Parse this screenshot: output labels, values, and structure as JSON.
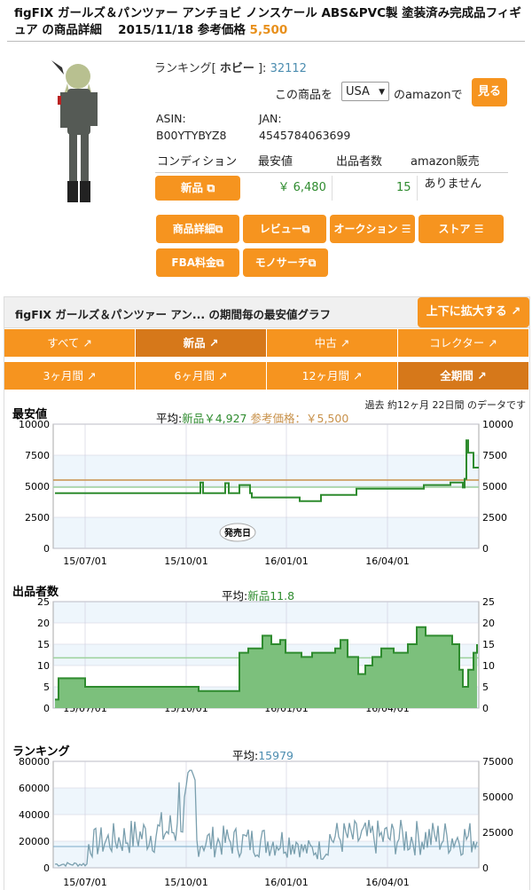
{
  "title": {
    "text": "figFIX ガールズ＆パンツァー アンチョビ ノンスケール ABS&PVC製 塗装済み完成品フィギュア の商品詳細　 2015/11/18 参考価格 ",
    "price": "5,500"
  },
  "ranking": {
    "label": "ランキング[",
    "category": "ホビー",
    "close": "]:",
    "value": "32112"
  },
  "amazon": {
    "prefix": "この商品を",
    "country": "USA",
    "suffix": "のamazonで",
    "see": "見る"
  },
  "ids": {
    "asin_label": "ASIN:",
    "asin": "B00YTYBYZ8",
    "jan_label": "JAN:",
    "jan": "4545784063699"
  },
  "condition": {
    "headers": [
      "コンディション",
      "最安値",
      "出品者数",
      "amazon販売"
    ],
    "label": "新品",
    "price": "￥ 6,480",
    "sellers": "15",
    "amazon": "ありません"
  },
  "actions": [
    "商品詳細",
    "レビュー",
    "オークション ☰",
    "ストア ☰",
    "FBA料金",
    "モノサーチ"
  ],
  "chart_header": {
    "title": "figFIX ガールズ＆パンツァー アン...  の期間毎の最安値グラフ",
    "expand": "上下に拡大する"
  },
  "cond_tabs": [
    "すべて",
    "新品",
    "中古",
    "コレクター"
  ],
  "period_tabs": [
    "3ヶ月間",
    "6ヶ月間",
    "12ヶ月間",
    "全期間"
  ],
  "meta": "過去 約12ヶ月 22日間 のデータです",
  "colors": {
    "accent": "#f6941f",
    "accent_dark": "#d6781a",
    "green": "#2e8b2e",
    "ref": "#c8914a"
  },
  "chart_data": [
    {
      "type": "line",
      "title": "最安値",
      "avg_label": "平均:",
      "avg_series": "新品￥4,927",
      "ref_label": "参考価格：￥5,500",
      "x_ticks": [
        "15/07/01",
        "15/10/01",
        "16/01/01",
        "16/04/01"
      ],
      "ylim": [
        0,
        10000
      ],
      "y_ticks": [
        0,
        2500,
        5000,
        7500,
        10000
      ],
      "annotation": "発売日",
      "ref_value": 5500,
      "avg_value": 4927
    },
    {
      "type": "area",
      "title": "出品者数",
      "avg_label": "平均:",
      "avg_series": "新品11.8",
      "avg_value": 11.8,
      "x_ticks": [
        "15/07/01",
        "15/10/01",
        "16/01/01",
        "16/04/01"
      ],
      "ylim": [
        0,
        25
      ],
      "y_ticks": [
        0,
        5,
        10,
        15,
        20,
        25
      ]
    },
    {
      "type": "line",
      "title": "ランキング",
      "avg_label": "平均:",
      "avg_value_text": "15979",
      "avg_value": 15979,
      "x_ticks": [
        "15/07/01",
        "15/10/01",
        "16/01/01",
        "16/04/01"
      ],
      "ylim": [
        0,
        80000
      ],
      "y_ticks": [
        0,
        20000,
        40000,
        60000,
        80000
      ],
      "y2_ticks": [
        0,
        25000,
        50000,
        75000
      ]
    }
  ]
}
